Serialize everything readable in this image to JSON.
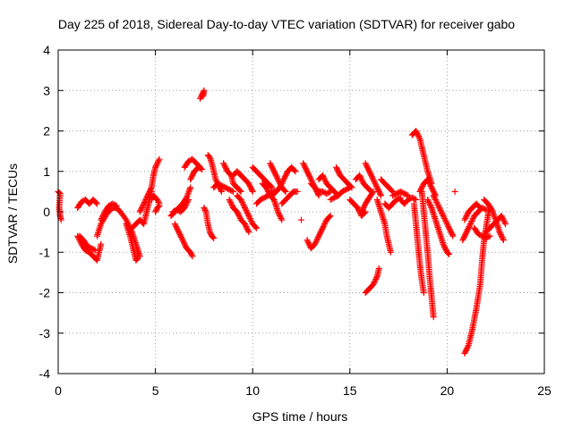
{
  "chart_data": {
    "type": "scatter",
    "title": "Day 225 of 2018, Sidereal Day-to-day VTEC variation (SDTVAR) for receiver gabo",
    "xlabel": "GPS time / hours",
    "ylabel": "SDTVAR / TECUs",
    "xlim": [
      0,
      25
    ],
    "ylim": [
      -4,
      4
    ],
    "xticks": [
      "0",
      "5",
      "10",
      "15",
      "20",
      "25"
    ],
    "yticks": [
      "-4",
      "-3",
      "-2",
      "-1",
      "0",
      "1",
      "2",
      "3",
      "4"
    ],
    "grid": true,
    "marker": "+",
    "color": "#ff0000",
    "segments": [
      [
        [
          0.0,
          0.5
        ],
        [
          0.1,
          0.45
        ],
        [
          0.05,
          0.1
        ],
        [
          0.1,
          -0.1
        ],
        [
          0.15,
          -0.2
        ]
      ],
      [
        [
          1.0,
          0.1
        ],
        [
          1.2,
          0.25
        ],
        [
          1.4,
          0.3
        ],
        [
          1.6,
          0.2
        ],
        [
          1.8,
          0.3
        ],
        [
          2.0,
          0.2
        ]
      ],
      [
        [
          1.0,
          -0.6
        ],
        [
          1.2,
          -0.8
        ],
        [
          1.4,
          -0.95
        ],
        [
          1.6,
          -1.0
        ],
        [
          1.8,
          -1.1
        ],
        [
          2.0,
          -1.2
        ],
        [
          2.1,
          -1.0
        ],
        [
          2.2,
          -0.8
        ]
      ],
      [
        [
          1.1,
          -0.6
        ],
        [
          1.3,
          -0.7
        ],
        [
          1.5,
          -0.85
        ],
        [
          1.7,
          -0.9
        ],
        [
          1.9,
          -0.95
        ]
      ],
      [
        [
          2.0,
          -0.6
        ],
        [
          2.2,
          -0.3
        ],
        [
          2.5,
          -0.05
        ],
        [
          2.8,
          0.1
        ],
        [
          3.0,
          0.1
        ],
        [
          3.2,
          0.0
        ],
        [
          3.5,
          -0.2
        ],
        [
          3.8,
          -0.5
        ],
        [
          4.0,
          -0.8
        ],
        [
          4.2,
          -1.1
        ]
      ],
      [
        [
          2.2,
          -0.2
        ],
        [
          2.4,
          0.0
        ],
        [
          2.6,
          0.15
        ],
        [
          2.8,
          0.2
        ],
        [
          3.0,
          0.15
        ]
      ],
      [
        [
          3.5,
          -0.3
        ],
        [
          3.7,
          -0.6
        ],
        [
          3.9,
          -1.0
        ],
        [
          4.0,
          -1.2
        ],
        [
          4.1,
          -1.15
        ]
      ],
      [
        [
          3.8,
          -0.4
        ],
        [
          4.0,
          -0.3
        ],
        [
          4.2,
          -0.2
        ],
        [
          4.4,
          -0.3
        ],
        [
          4.5,
          -0.1
        ],
        [
          4.6,
          0.1
        ],
        [
          4.7,
          0.3
        ],
        [
          4.8,
          0.5
        ]
      ],
      [
        [
          4.2,
          0.0
        ],
        [
          4.4,
          0.2
        ],
        [
          4.6,
          0.4
        ],
        [
          4.8,
          0.6
        ],
        [
          4.9,
          0.9
        ],
        [
          5.0,
          1.1
        ],
        [
          5.1,
          1.2
        ],
        [
          5.2,
          1.3
        ]
      ],
      [
        [
          4.8,
          0.3
        ],
        [
          4.9,
          0.4
        ],
        [
          5.0,
          0.35
        ],
        [
          5.1,
          0.3
        ],
        [
          5.2,
          0.2
        ]
      ],
      [
        [
          5.0,
          0.0
        ],
        [
          5.1,
          0.1
        ],
        [
          5.2,
          0.15
        ]
      ],
      [
        [
          5.8,
          -0.1
        ],
        [
          6.0,
          0.0
        ],
        [
          6.2,
          0.1
        ],
        [
          6.4,
          0.2
        ],
        [
          6.6,
          0.35
        ],
        [
          6.8,
          0.6
        ]
      ],
      [
        [
          5.9,
          0.0
        ],
        [
          6.1,
          0.05
        ],
        [
          6.3,
          0.0
        ],
        [
          6.5,
          0.1
        ],
        [
          6.7,
          0.3
        ]
      ],
      [
        [
          6.0,
          -0.3
        ],
        [
          6.2,
          -0.5
        ],
        [
          6.4,
          -0.7
        ],
        [
          6.6,
          -0.9
        ],
        [
          6.8,
          -1.0
        ],
        [
          6.9,
          -1.1
        ]
      ],
      [
        [
          6.5,
          1.1
        ],
        [
          6.7,
          1.25
        ],
        [
          6.9,
          1.3
        ],
        [
          7.1,
          1.2
        ],
        [
          7.3,
          1.1
        ]
      ],
      [
        [
          6.8,
          0.8
        ],
        [
          7.0,
          1.0
        ],
        [
          7.2,
          1.1
        ],
        [
          7.4,
          1.05
        ]
      ],
      [
        [
          7.3,
          2.8
        ],
        [
          7.4,
          2.9
        ],
        [
          7.5,
          3.0
        ],
        [
          7.45,
          2.85
        ]
      ],
      [
        [
          7.5,
          0.1
        ],
        [
          7.6,
          0.0
        ],
        [
          7.7,
          -0.3
        ],
        [
          7.8,
          -0.5
        ],
        [
          7.9,
          -0.6
        ],
        [
          8.0,
          -0.65
        ]
      ],
      [
        [
          7.7,
          1.4
        ],
        [
          7.8,
          1.35
        ],
        [
          7.9,
          1.2
        ],
        [
          8.0,
          1.0
        ],
        [
          8.1,
          0.8
        ],
        [
          8.2,
          0.7
        ],
        [
          8.3,
          0.6
        ],
        [
          8.4,
          0.5
        ]
      ],
      [
        [
          8.0,
          0.6
        ],
        [
          8.2,
          0.7
        ],
        [
          8.4,
          0.65
        ],
        [
          8.6,
          0.6
        ],
        [
          8.8,
          0.55
        ],
        [
          9.0,
          0.5
        ]
      ],
      [
        [
          8.5,
          1.2
        ],
        [
          8.7,
          1.0
        ],
        [
          8.9,
          0.9
        ],
        [
          9.0,
          0.7
        ],
        [
          9.2,
          0.6
        ],
        [
          9.4,
          0.5
        ]
      ],
      [
        [
          8.8,
          0.3
        ],
        [
          9.0,
          0.1
        ],
        [
          9.2,
          0.0
        ],
        [
          9.4,
          -0.2
        ],
        [
          9.6,
          -0.3
        ],
        [
          9.8,
          -0.5
        ]
      ],
      [
        [
          9.0,
          0.9
        ],
        [
          9.2,
          1.0
        ],
        [
          9.4,
          0.9
        ],
        [
          9.6,
          0.8
        ],
        [
          9.8,
          0.7
        ],
        [
          10.0,
          0.5
        ]
      ],
      [
        [
          9.2,
          0.4
        ],
        [
          9.4,
          0.3
        ],
        [
          9.6,
          0.1
        ],
        [
          9.8,
          -0.1
        ],
        [
          10.0,
          -0.3
        ],
        [
          10.2,
          -0.4
        ]
      ],
      [
        [
          10.0,
          1.1
        ],
        [
          10.2,
          1.0
        ],
        [
          10.4,
          0.9
        ],
        [
          10.6,
          0.8
        ],
        [
          10.8,
          0.7
        ],
        [
          11.0,
          0.6
        ]
      ],
      [
        [
          10.2,
          0.2
        ],
        [
          10.4,
          0.3
        ],
        [
          10.6,
          0.35
        ],
        [
          10.8,
          0.4
        ],
        [
          11.0,
          0.5
        ],
        [
          11.2,
          0.5
        ]
      ],
      [
        [
          10.5,
          0.7
        ],
        [
          10.7,
          0.6
        ],
        [
          10.9,
          0.4
        ],
        [
          11.1,
          0.3
        ],
        [
          11.3,
          0.0
        ],
        [
          11.5,
          -0.2
        ]
      ],
      [
        [
          10.9,
          1.2
        ],
        [
          11.1,
          1.0
        ],
        [
          11.3,
          0.8
        ],
        [
          11.5,
          0.6
        ],
        [
          11.7,
          0.5
        ]
      ],
      [
        [
          11.0,
          0.4
        ],
        [
          11.2,
          0.5
        ],
        [
          11.4,
          0.6
        ],
        [
          11.6,
          0.8
        ],
        [
          11.8,
          1.0
        ],
        [
          12.0,
          1.1
        ],
        [
          12.2,
          1.0
        ]
      ],
      [
        [
          11.5,
          0.2
        ],
        [
          11.7,
          0.3
        ],
        [
          11.9,
          0.4
        ],
        [
          12.1,
          0.5
        ],
        [
          12.3,
          0.5
        ]
      ],
      [
        [
          12.5,
          -0.2
        ]
      ],
      [
        [
          12.6,
          1.2
        ],
        [
          12.8,
          1.0
        ],
        [
          13.0,
          0.8
        ],
        [
          13.2,
          0.6
        ],
        [
          13.4,
          0.4
        ]
      ],
      [
        [
          12.8,
          -0.7
        ],
        [
          13.0,
          -0.9
        ],
        [
          13.2,
          -0.8
        ],
        [
          13.4,
          -0.6
        ],
        [
          13.6,
          -0.4
        ],
        [
          13.8,
          -0.2
        ],
        [
          14.0,
          -0.1
        ]
      ],
      [
        [
          13.0,
          0.7
        ],
        [
          13.2,
          0.6
        ],
        [
          13.4,
          0.5
        ],
        [
          13.6,
          0.5
        ],
        [
          13.8,
          0.45
        ],
        [
          14.0,
          0.5
        ]
      ],
      [
        [
          13.4,
          0.8
        ],
        [
          13.6,
          0.9
        ],
        [
          13.8,
          0.7
        ],
        [
          14.0,
          0.6
        ],
        [
          14.2,
          0.5
        ],
        [
          14.4,
          0.4
        ]
      ],
      [
        [
          14.0,
          0.3
        ],
        [
          14.2,
          0.35
        ],
        [
          14.4,
          0.4
        ],
        [
          14.6,
          0.5
        ],
        [
          14.8,
          0.55
        ],
        [
          15.0,
          0.6
        ]
      ],
      [
        [
          14.3,
          1.1
        ],
        [
          14.5,
          0.9
        ],
        [
          14.7,
          0.8
        ],
        [
          14.9,
          0.7
        ],
        [
          15.1,
          0.6
        ]
      ],
      [
        [
          15.0,
          0.3
        ],
        [
          15.2,
          0.2
        ],
        [
          15.4,
          0.1
        ],
        [
          15.6,
          -0.1
        ],
        [
          15.8,
          0.0
        ]
      ],
      [
        [
          15.3,
          0.8
        ],
        [
          15.5,
          0.9
        ],
        [
          15.7,
          0.7
        ],
        [
          15.9,
          0.6
        ],
        [
          16.1,
          0.5
        ]
      ],
      [
        [
          15.6,
          0.0
        ],
        [
          15.8,
          0.2
        ],
        [
          16.0,
          0.35
        ],
        [
          16.2,
          0.5
        ]
      ],
      [
        [
          15.8,
          -2.0
        ],
        [
          16.0,
          -1.9
        ],
        [
          16.2,
          -1.8
        ],
        [
          16.4,
          -1.6
        ],
        [
          16.5,
          -1.4
        ]
      ],
      [
        [
          15.8,
          1.2
        ],
        [
          16.0,
          1.0
        ],
        [
          16.2,
          0.8
        ],
        [
          16.4,
          0.6
        ],
        [
          16.6,
          0.4
        ]
      ],
      [
        [
          16.4,
          0.3
        ],
        [
          16.6,
          0.0
        ],
        [
          16.8,
          -0.3
        ],
        [
          16.9,
          -0.6
        ],
        [
          17.0,
          -0.8
        ],
        [
          17.1,
          -1.0
        ]
      ],
      [
        [
          16.6,
          0.8
        ],
        [
          16.8,
          0.7
        ],
        [
          17.0,
          0.6
        ],
        [
          17.2,
          0.5
        ]
      ],
      [
        [
          16.8,
          0.2
        ],
        [
          17.0,
          0.1
        ],
        [
          17.2,
          0.2
        ],
        [
          17.4,
          0.3
        ],
        [
          17.6,
          0.35
        ]
      ],
      [
        [
          17.2,
          0.4
        ],
        [
          17.4,
          0.45
        ],
        [
          17.6,
          0.5
        ],
        [
          17.8,
          0.45
        ],
        [
          18.0,
          0.4
        ]
      ],
      [
        [
          17.6,
          0.3
        ],
        [
          17.8,
          0.2
        ],
        [
          18.0,
          0.3
        ],
        [
          18.2,
          0.35
        ],
        [
          18.4,
          0.3
        ]
      ],
      [
        [
          18.2,
          1.9
        ],
        [
          18.4,
          2.0
        ],
        [
          18.6,
          1.8
        ],
        [
          18.8,
          1.4
        ],
        [
          19.0,
          1.0
        ],
        [
          19.2,
          0.7
        ]
      ],
      [
        [
          18.3,
          0.2
        ],
        [
          18.4,
          -0.3
        ],
        [
          18.5,
          -0.8
        ],
        [
          18.6,
          -1.3
        ],
        [
          18.7,
          -1.7
        ],
        [
          18.8,
          -2.0
        ]
      ],
      [
        [
          18.7,
          0.5
        ],
        [
          18.8,
          0.0
        ],
        [
          18.9,
          -0.5
        ],
        [
          19.0,
          -1.0
        ],
        [
          19.1,
          -1.6
        ],
        [
          19.2,
          -2.1
        ],
        [
          19.3,
          -2.6
        ]
      ],
      [
        [
          18.6,
          0.5
        ],
        [
          18.8,
          0.7
        ],
        [
          19.0,
          0.8
        ],
        [
          19.2,
          0.6
        ],
        [
          19.4,
          0.4
        ]
      ],
      [
        [
          19.0,
          0.3
        ],
        [
          19.2,
          0.1
        ],
        [
          19.4,
          -0.2
        ],
        [
          19.6,
          -0.5
        ],
        [
          19.8,
          -0.8
        ],
        [
          20.0,
          -1.0
        ],
        [
          20.1,
          -1.05
        ]
      ],
      [
        [
          19.3,
          0.4
        ],
        [
          19.5,
          0.2
        ],
        [
          19.7,
          0.0
        ],
        [
          19.9,
          -0.2
        ],
        [
          20.1,
          -0.4
        ],
        [
          20.3,
          -0.6
        ]
      ],
      [
        [
          20.4,
          0.5
        ]
      ],
      [
        [
          20.9,
          -3.5
        ],
        [
          21.1,
          -3.3
        ],
        [
          21.3,
          -2.9
        ],
        [
          21.5,
          -2.4
        ],
        [
          21.7,
          -1.8
        ],
        [
          21.8,
          -1.2
        ],
        [
          21.9,
          -0.7
        ],
        [
          22.0,
          -0.4
        ],
        [
          22.1,
          -0.1
        ],
        [
          22.2,
          0.1
        ]
      ],
      [
        [
          20.8,
          -0.7
        ],
        [
          21.0,
          -0.5
        ],
        [
          21.2,
          -0.3
        ],
        [
          21.4,
          -0.1
        ],
        [
          21.6,
          0.0
        ],
        [
          21.8,
          0.1
        ],
        [
          22.0,
          0.05
        ]
      ],
      [
        [
          20.9,
          -0.2
        ],
        [
          21.1,
          0.0
        ],
        [
          21.3,
          0.1
        ],
        [
          21.5,
          0.2
        ],
        [
          21.7,
          0.1
        ]
      ],
      [
        [
          21.9,
          0.3
        ],
        [
          22.1,
          0.2
        ],
        [
          22.3,
          0.05
        ],
        [
          22.5,
          -0.2
        ],
        [
          22.7,
          -0.5
        ],
        [
          22.9,
          -0.7
        ]
      ],
      [
        [
          22.0,
          -0.5
        ],
        [
          22.2,
          -0.4
        ],
        [
          22.4,
          -0.3
        ],
        [
          22.6,
          -0.2
        ],
        [
          22.8,
          -0.1
        ],
        [
          23.0,
          -0.3
        ]
      ],
      [
        [
          21.4,
          -0.4
        ],
        [
          21.6,
          -0.55
        ],
        [
          21.8,
          -0.6
        ],
        [
          22.0,
          -0.65
        ],
        [
          22.2,
          -0.6
        ]
      ]
    ]
  }
}
